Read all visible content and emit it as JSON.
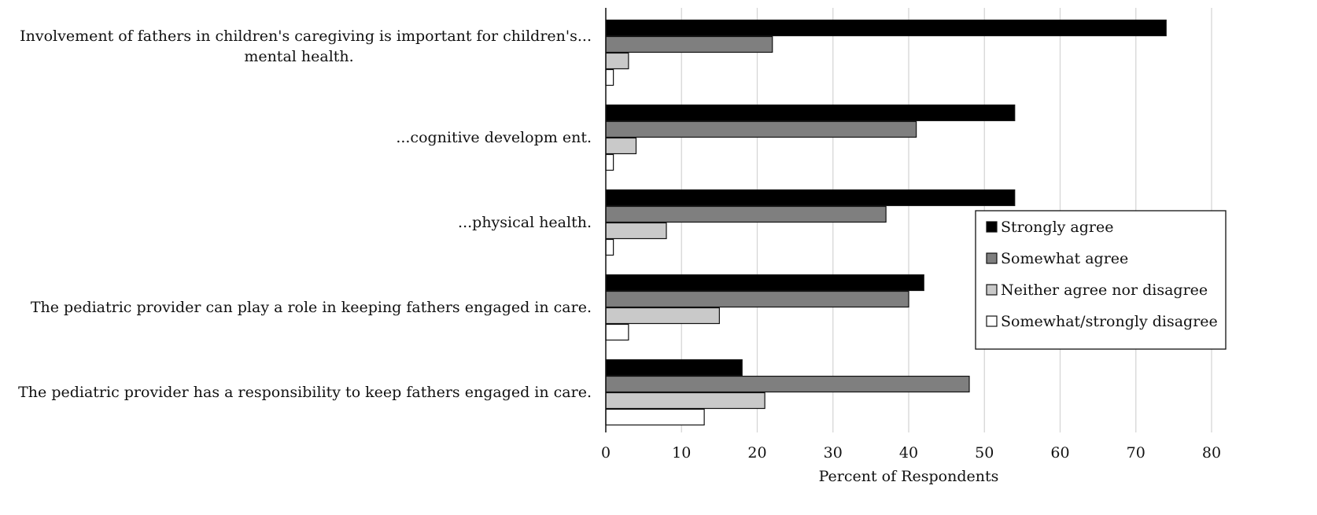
{
  "chart_data": {
    "type": "bar",
    "orientation": "horizontal",
    "categories": [
      [
        "Involvement of fathers in children's caregiving is important for children's...",
        "mental health."
      ],
      [
        "...cognitive developm ent."
      ],
      [
        "...physical health."
      ],
      [
        "The pediatric provider can play a role in keeping fathers engaged in care."
      ],
      [
        "The pediatric provider has a responsibility to keep fathers engaged in care."
      ]
    ],
    "series": [
      {
        "name": "Strongly agree",
        "color": "#000000",
        "values": [
          74,
          54,
          54,
          42,
          18
        ]
      },
      {
        "name": "Somewhat agree",
        "color": "#7f7f7f",
        "values": [
          22,
          41,
          37,
          40,
          48
        ]
      },
      {
        "name": "Neither agree nor disagree",
        "color": "#c9c9c9",
        "values": [
          3,
          4,
          8,
          15,
          21
        ]
      },
      {
        "name": "Somewhat/strongly disagree",
        "color": "#ffffff",
        "values": [
          1,
          1,
          1,
          3,
          13
        ]
      }
    ],
    "xlabel": "Percent of Respondents",
    "xlim": [
      0,
      80
    ],
    "xticks": [
      0,
      10,
      20,
      30,
      40,
      50,
      60,
      70,
      80
    ],
    "grid": true,
    "legend_position": "right"
  }
}
